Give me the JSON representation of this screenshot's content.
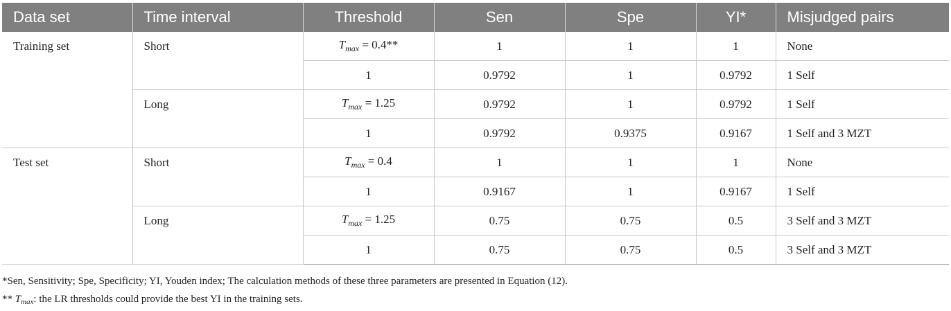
{
  "table": {
    "headers": [
      "Data set",
      "Time interval",
      "Threshold",
      "Sen",
      "Spe",
      "YI*",
      "Misjudged pairs"
    ],
    "groups": [
      {
        "data_set": "Training set",
        "intervals": [
          {
            "name": "Short",
            "rows": [
              {
                "threshold_symbol": "T",
                "threshold_sub": "max",
                "threshold_value": " = 0.4**",
                "sen": "1",
                "spe": "1",
                "yi": "1",
                "misjudged": "None"
              },
              {
                "threshold_plain": "1",
                "sen": "0.9792",
                "spe": "1",
                "yi": "0.9792",
                "misjudged": "1 Self"
              }
            ]
          },
          {
            "name": "Long",
            "rows": [
              {
                "threshold_symbol": "T",
                "threshold_sub": "max",
                "threshold_value": " = 1.25",
                "sen": "0.9792",
                "spe": "1",
                "yi": "0.9792",
                "misjudged": "1 Self"
              },
              {
                "threshold_plain": "1",
                "sen": "0.9792",
                "spe": "0.9375",
                "yi": "0.9167",
                "misjudged": "1 Self and 3 MZT"
              }
            ]
          }
        ]
      },
      {
        "data_set": "Test set",
        "intervals": [
          {
            "name": "Short",
            "rows": [
              {
                "threshold_symbol": "T",
                "threshold_sub": "max",
                "threshold_value": " = 0.4",
                "sen": "1",
                "spe": "1",
                "yi": "1",
                "misjudged": "None"
              },
              {
                "threshold_plain": "1",
                "sen": "0.9167",
                "spe": "1",
                "yi": "0.9167",
                "misjudged": "1 Self"
              }
            ]
          },
          {
            "name": "Long",
            "rows": [
              {
                "threshold_symbol": "T",
                "threshold_sub": "max",
                "threshold_value": " = 1.25",
                "sen": "0.75",
                "spe": "0.75",
                "yi": "0.5",
                "misjudged": "3 Self and 3 MZT"
              },
              {
                "threshold_plain": "1",
                "sen": "0.75",
                "spe": "0.75",
                "yi": "0.5",
                "misjudged": "3 Self and 3 MZT"
              }
            ]
          }
        ]
      }
    ]
  },
  "footnotes": {
    "note1": "*Sen, Sensitivity; Spe, Specificity; YI, Youden index; The calculation methods of these three parameters are presented in Equation (12).",
    "note2_prefix": "** ",
    "note2_symbol": "T",
    "note2_sub": "max",
    "note2_text": ": the LR thresholds could provide the best YI in the training sets."
  }
}
